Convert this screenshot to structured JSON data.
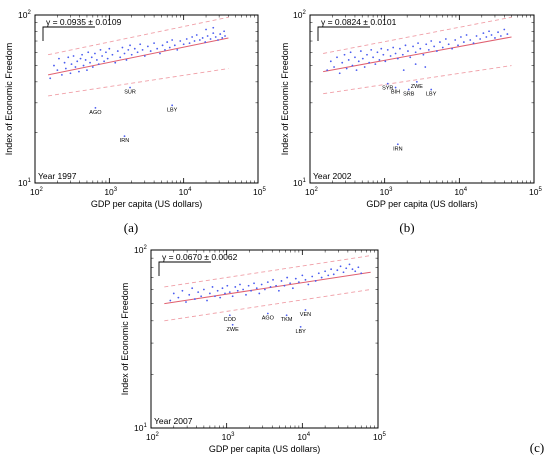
{
  "chart_data": [
    {
      "type": "scatter",
      "panel_letter": "(a)",
      "year_label": "Year 1997",
      "gamma_label": "γ = 0.0935 ± 0.0109",
      "xlabel": "GDP per capita (US dollars)",
      "ylabel": "Index of Economic Freedom",
      "xscale": "log",
      "yscale": "log",
      "xlim": [
        100,
        100000
      ],
      "ylim": [
        10,
        100
      ],
      "x_ticks": [
        "10",
        "10",
        "10",
        "10"
      ],
      "x_tick_exponents": [
        "2",
        "3",
        "4",
        "5"
      ],
      "y_ticks": [
        "10",
        "10"
      ],
      "y_tick_exponents": [
        "2",
        "1"
      ],
      "fit": {
        "x": [
          150,
          40000
        ],
        "y": [
          44,
          73
        ]
      },
      "band_upper": {
        "x": [
          150,
          40000
        ],
        "y": [
          58,
          97
        ]
      },
      "band_lower": {
        "x": [
          150,
          40000
        ],
        "y": [
          33,
          48
        ]
      },
      "labeled_points": [
        {
          "name": "SUR",
          "x": 1900,
          "y": 37
        },
        {
          "name": "AGO",
          "x": 650,
          "y": 28
        },
        {
          "name": "LBY",
          "x": 7000,
          "y": 29
        },
        {
          "name": "IRN",
          "x": 1600,
          "y": 19
        }
      ],
      "points": [
        [
          160,
          42
        ],
        [
          180,
          50
        ],
        [
          200,
          47
        ],
        [
          210,
          55
        ],
        [
          230,
          44
        ],
        [
          250,
          52
        ],
        [
          260,
          48
        ],
        [
          280,
          56
        ],
        [
          300,
          45
        ],
        [
          310,
          51
        ],
        [
          330,
          57
        ],
        [
          350,
          49
        ],
        [
          370,
          53
        ],
        [
          390,
          46
        ],
        [
          410,
          55
        ],
        [
          430,
          58
        ],
        [
          450,
          50
        ],
        [
          480,
          54
        ],
        [
          500,
          47
        ],
        [
          520,
          60
        ],
        [
          550,
          52
        ],
        [
          580,
          56
        ],
        [
          600,
          49
        ],
        [
          640,
          59
        ],
        [
          680,
          54
        ],
        [
          720,
          51
        ],
        [
          760,
          62
        ],
        [
          800,
          57
        ],
        [
          850,
          53
        ],
        [
          900,
          60
        ],
        [
          950,
          55
        ],
        [
          1000,
          63
        ],
        [
          1100,
          58
        ],
        [
          1200,
          52
        ],
        [
          1300,
          61
        ],
        [
          1400,
          56
        ],
        [
          1500,
          64
        ],
        [
          1600,
          59
        ],
        [
          1700,
          54
        ],
        [
          1800,
          62
        ],
        [
          1900,
          66
        ],
        [
          2000,
          58
        ],
        [
          2200,
          63
        ],
        [
          2400,
          60
        ],
        [
          2600,
          67
        ],
        [
          2800,
          62
        ],
        [
          3000,
          57
        ],
        [
          3300,
          65
        ],
        [
          3600,
          61
        ],
        [
          4000,
          68
        ],
        [
          4400,
          63
        ],
        [
          4800,
          59
        ],
        [
          5200,
          66
        ],
        [
          5600,
          62
        ],
        [
          6000,
          69
        ],
        [
          6500,
          64
        ],
        [
          7000,
          71
        ],
        [
          7600,
          66
        ],
        [
          8200,
          62
        ],
        [
          9000,
          70
        ],
        [
          10000,
          67
        ],
        [
          11000,
          72
        ],
        [
          12000,
          68
        ],
        [
          13000,
          74
        ],
        [
          14000,
          70
        ],
        [
          15000,
          76
        ],
        [
          16500,
          71
        ],
        [
          18000,
          73
        ],
        [
          19500,
          69
        ],
        [
          21000,
          75
        ],
        [
          23000,
          72
        ],
        [
          25000,
          78
        ],
        [
          27000,
          74
        ],
        [
          29000,
          71
        ],
        [
          31000,
          77
        ],
        [
          33000,
          73
        ],
        [
          35000,
          80
        ],
        [
          25000,
          84
        ],
        [
          20000,
          82
        ],
        [
          36000,
          75
        ]
      ]
    },
    {
      "type": "scatter",
      "panel_letter": "(b)",
      "year_label": "Year 2002",
      "gamma_label": "γ = 0.0824 ± 0.0101",
      "xlabel": "GDP per capita (US dollars)",
      "ylabel": "Index of Economic Freedom",
      "xscale": "log",
      "yscale": "log",
      "xlim": [
        100,
        100000
      ],
      "ylim": [
        10,
        100
      ],
      "x_ticks": [
        "10",
        "10",
        "10",
        "10"
      ],
      "x_tick_exponents": [
        "2",
        "3",
        "4",
        "5"
      ],
      "y_ticks": [
        "10",
        "10"
      ],
      "y_tick_exponents": [
        "2",
        "1"
      ],
      "fit": {
        "x": [
          150,
          50000
        ],
        "y": [
          46,
          74
        ]
      },
      "band_upper": {
        "x": [
          150,
          50000
        ],
        "y": [
          59,
          97
        ]
      },
      "band_lower": {
        "x": [
          150,
          50000
        ],
        "y": [
          34,
          50
        ]
      },
      "labeled_points": [
        {
          "name": "SYR",
          "x": 1100,
          "y": 39
        },
        {
          "name": "ZWE",
          "x": 2700,
          "y": 40
        },
        {
          "name": "BIH",
          "x": 1400,
          "y": 37
        },
        {
          "name": "SRB",
          "x": 2100,
          "y": 36
        },
        {
          "name": "LBY",
          "x": 4200,
          "y": 36
        },
        {
          "name": "IRN",
          "x": 1500,
          "y": 17
        }
      ],
      "points": [
        [
          170,
          47
        ],
        [
          190,
          53
        ],
        [
          210,
          49
        ],
        [
          230,
          56
        ],
        [
          250,
          45
        ],
        [
          270,
          52
        ],
        [
          290,
          58
        ],
        [
          310,
          48
        ],
        [
          330,
          54
        ],
        [
          350,
          60
        ],
        [
          370,
          50
        ],
        [
          400,
          56
        ],
        [
          420,
          47
        ],
        [
          450,
          53
        ],
        [
          480,
          61
        ],
        [
          510,
          55
        ],
        [
          540,
          49
        ],
        [
          580,
          58
        ],
        [
          620,
          52
        ],
        [
          660,
          62
        ],
        [
          700,
          56
        ],
        [
          750,
          51
        ],
        [
          800,
          60
        ],
        [
          850,
          54
        ],
        [
          900,
          63
        ],
        [
          960,
          58
        ],
        [
          1020,
          53
        ],
        [
          1100,
          62
        ],
        [
          1200,
          57
        ],
        [
          1300,
          64
        ],
        [
          1400,
          59
        ],
        [
          1500,
          55
        ],
        [
          1600,
          63
        ],
        [
          1750,
          58
        ],
        [
          1900,
          66
        ],
        [
          2050,
          61
        ],
        [
          2200,
          56
        ],
        [
          2400,
          65
        ],
        [
          2600,
          60
        ],
        [
          2800,
          68
        ],
        [
          3000,
          63
        ],
        [
          3300,
          58
        ],
        [
          3600,
          67
        ],
        [
          3900,
          62
        ],
        [
          4200,
          70
        ],
        [
          4600,
          65
        ],
        [
          5000,
          61
        ],
        [
          5500,
          69
        ],
        [
          6000,
          64
        ],
        [
          6600,
          72
        ],
        [
          7200,
          67
        ],
        [
          8000,
          63
        ],
        [
          8800,
          71
        ],
        [
          9600,
          66
        ],
        [
          10500,
          74
        ],
        [
          11500,
          69
        ],
        [
          12500,
          76
        ],
        [
          14000,
          71
        ],
        [
          15500,
          68
        ],
        [
          17000,
          75
        ],
        [
          19000,
          72
        ],
        [
          21000,
          78
        ],
        [
          23000,
          74
        ],
        [
          25000,
          80
        ],
        [
          27000,
          76
        ],
        [
          30000,
          73
        ],
        [
          33000,
          79
        ],
        [
          36000,
          75
        ],
        [
          40000,
          82
        ],
        [
          44000,
          77
        ],
        [
          2600,
          51
        ],
        [
          1800,
          47
        ],
        [
          3500,
          49
        ]
      ]
    },
    {
      "type": "scatter",
      "panel_letter": "(c)",
      "year_label": "Year 2007",
      "gamma_label": "γ = 0.0670 ± 0.0062",
      "xlabel": "GDP per capita (US dollars)",
      "ylabel": "Index of Economic Freedom",
      "xscale": "log",
      "yscale": "log",
      "xlim": [
        100,
        100000
      ],
      "ylim": [
        10,
        100
      ],
      "x_ticks": [
        "10",
        "10",
        "10",
        "10"
      ],
      "x_tick_exponents": [
        "2",
        "3",
        "4",
        "5"
      ],
      "y_ticks": [
        "10",
        "10"
      ],
      "y_tick_exponents": [
        "2",
        "1"
      ],
      "fit": {
        "x": [
          150,
          80000
        ],
        "y": [
          50,
          75
        ]
      },
      "band_upper": {
        "x": [
          150,
          80000
        ],
        "y": [
          62,
          93
        ]
      },
      "band_lower": {
        "x": [
          150,
          80000
        ],
        "y": [
          40,
          60
        ]
      },
      "labeled_points": [
        {
          "name": "COD",
          "x": 1100,
          "y": 43
        },
        {
          "name": "AGO",
          "x": 3500,
          "y": 44
        },
        {
          "name": "VEN",
          "x": 11000,
          "y": 46
        },
        {
          "name": "TKM",
          "x": 6200,
          "y": 43
        },
        {
          "name": "ZWE",
          "x": 1200,
          "y": 38
        },
        {
          "name": "LBY",
          "x": 9500,
          "y": 37
        }
      ],
      "points": [
        [
          180,
          52
        ],
        [
          200,
          57
        ],
        [
          230,
          54
        ],
        [
          260,
          59
        ],
        [
          290,
          51
        ],
        [
          320,
          56
        ],
        [
          350,
          61
        ],
        [
          380,
          53
        ],
        [
          420,
          58
        ],
        [
          460,
          55
        ],
        [
          500,
          60
        ],
        [
          550,
          52
        ],
        [
          600,
          57
        ],
        [
          650,
          62
        ],
        [
          700,
          55
        ],
        [
          760,
          59
        ],
        [
          820,
          54
        ],
        [
          880,
          61
        ],
        [
          950,
          57
        ],
        [
          1020,
          63
        ],
        [
          1100,
          58
        ],
        [
          1200,
          55
        ],
        [
          1300,
          62
        ],
        [
          1400,
          59
        ],
        [
          1500,
          64
        ],
        [
          1650,
          60
        ],
        [
          1800,
          56
        ],
        [
          1950,
          63
        ],
        [
          2100,
          59
        ],
        [
          2300,
          65
        ],
        [
          2500,
          61
        ],
        [
          2700,
          57
        ],
        [
          2900,
          64
        ],
        [
          3200,
          60
        ],
        [
          3500,
          66
        ],
        [
          3800,
          62
        ],
        [
          4100,
          68
        ],
        [
          4500,
          63
        ],
        [
          4900,
          59
        ],
        [
          5300,
          67
        ],
        [
          5800,
          63
        ],
        [
          6300,
          70
        ],
        [
          6900,
          65
        ],
        [
          7500,
          61
        ],
        [
          8200,
          69
        ],
        [
          9000,
          66
        ],
        [
          10000,
          72
        ],
        [
          11000,
          68
        ],
        [
          12000,
          64
        ],
        [
          13500,
          71
        ],
        [
          15000,
          67
        ],
        [
          16500,
          74
        ],
        [
          18000,
          70
        ],
        [
          20000,
          76
        ],
        [
          22000,
          72
        ],
        [
          24000,
          78
        ],
        [
          26000,
          73
        ],
        [
          29000,
          77
        ],
        [
          32000,
          81
        ],
        [
          35000,
          75
        ],
        [
          38000,
          79
        ],
        [
          42000,
          83
        ],
        [
          46000,
          78
        ],
        [
          50000,
          76
        ],
        [
          55000,
          80
        ],
        [
          60000,
          74
        ]
      ]
    }
  ]
}
